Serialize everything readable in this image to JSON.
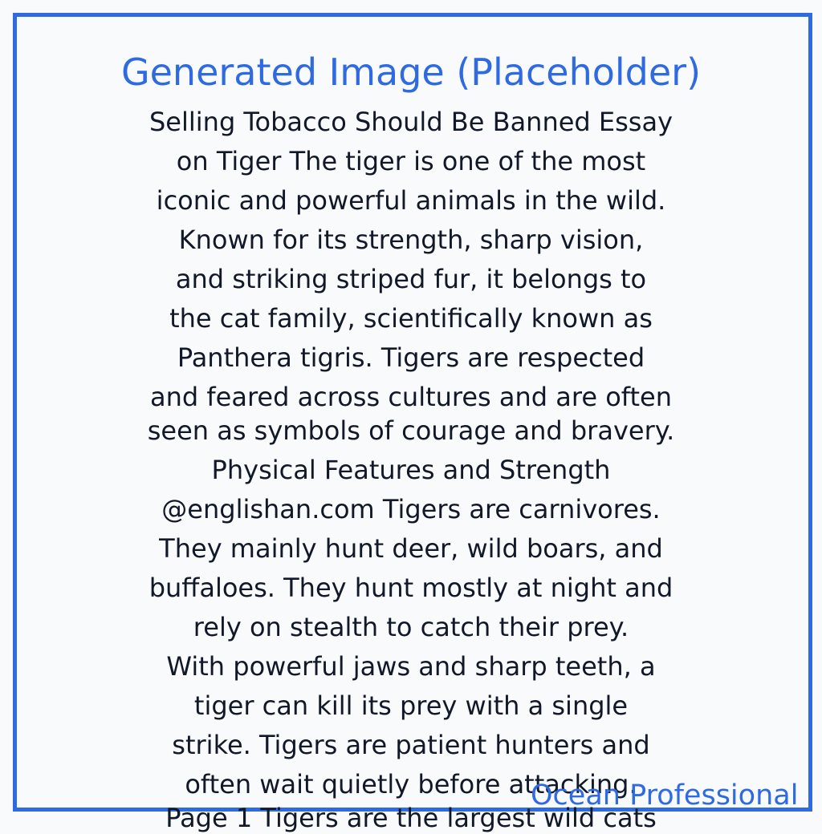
{
  "title": "Generated Image (Placeholder)",
  "body_lines": [
    "Selling Tobacco Should Be Banned Essay",
    "on Tiger The tiger is one of the most",
    "iconic and powerful animals in the wild.",
    "Known for its strength, sharp vision,",
    "and striking striped fur, it belongs to",
    "the cat family, scientifically known as",
    "Panthera tigris. Tigers are respected",
    "and feared across cultures and are often",
    "seen as symbols of courage and bravery.",
    "Physical Features and Strength",
    "@englishan.com Tigers are carnivores.",
    "They mainly hunt deer, wild boars, and",
    "buffaloes. They hunt mostly at night and",
    "rely on stealth to catch their prey.",
    "With powerful jaws and sharp teeth, a",
    "tiger can kill its prey with a single",
    "strike. Tigers are patient hunters and",
    "often wait quietly before attacking.",
    "Page 1 Tigers are the largest wild cats"
  ],
  "watermark": "Ocean Professional",
  "colors": {
    "accent": "#2f6ae0",
    "text": "#111827",
    "background": "#f8fafc"
  }
}
